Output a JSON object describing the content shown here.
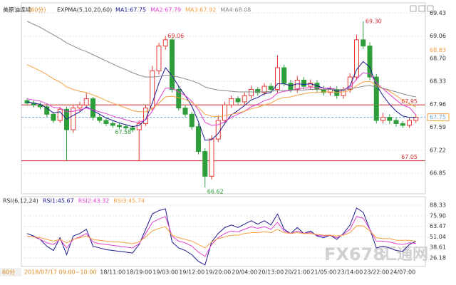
{
  "chart_data": [
    {
      "type": "candlestick",
      "title": "美原油连续",
      "period": "(60分)",
      "indicator": "EXPMA(5,10,20,60)",
      "categories": [
        null,
        null,
        null,
        null,
        null,
        null,
        null,
        null,
        null,
        null,
        null,
        null,
        null,
        "18/11:00",
        null,
        null,
        null,
        "18/19:00",
        null,
        null,
        null,
        "19/03:00",
        null,
        null,
        null,
        "19/12:00",
        null,
        null,
        null,
        "19/20:00",
        null,
        null,
        null,
        "20/04:00",
        null,
        null,
        null,
        "20/13:00",
        null,
        null,
        null,
        "20/21:00",
        null,
        null,
        null,
        "21/05:00",
        null,
        null,
        null,
        "23/14:00",
        null,
        null,
        null,
        "23/22:00",
        null,
        null,
        null,
        "24/07:00",
        null,
        null
      ],
      "open": [
        68.02,
        67.98,
        67.95,
        67.92,
        67.8,
        67.7,
        67.88,
        67.55,
        67.9,
        67.95,
        68.05,
        67.75,
        67.7,
        67.65,
        67.62,
        67.6,
        67.58,
        67.55,
        67.65,
        67.9,
        68.5,
        68.9,
        69.0,
        68.2,
        67.9,
        67.8,
        67.6,
        67.2,
        66.8,
        67.4,
        67.7,
        67.95,
        68.05,
        68.0,
        68.1,
        68.2,
        68.15,
        68.25,
        68.2,
        68.55,
        68.3,
        68.2,
        68.35,
        68.25,
        68.3,
        68.2,
        68.15,
        68.2,
        68.1,
        68.2,
        68.4,
        69.0,
        68.9,
        68.4,
        67.7,
        67.75,
        67.7,
        67.65,
        67.62,
        67.7
      ],
      "high": [
        68.06,
        68.02,
        67.99,
        67.96,
        67.84,
        67.92,
        67.92,
        67.95,
        68.0,
        68.15,
        68.08,
        67.8,
        67.74,
        67.69,
        67.66,
        67.64,
        67.62,
        67.7,
        67.95,
        68.58,
        68.95,
        69.06,
        69.03,
        68.26,
        67.95,
        67.84,
        67.65,
        67.25,
        67.46,
        67.78,
        68.0,
        68.1,
        68.09,
        68.15,
        68.26,
        68.24,
        68.3,
        68.3,
        68.75,
        68.6,
        68.36,
        68.42,
        68.4,
        68.36,
        68.35,
        68.26,
        68.25,
        68.25,
        68.24,
        68.46,
        69.08,
        69.3,
        68.96,
        68.45,
        67.82,
        67.8,
        67.74,
        67.69,
        67.74,
        67.8
      ],
      "low": [
        67.94,
        67.91,
        67.88,
        67.76,
        67.66,
        67.66,
        67.05,
        67.5,
        67.85,
        67.9,
        67.7,
        67.66,
        67.61,
        67.58,
        67.56,
        67.54,
        67.51,
        67.05,
        67.61,
        67.85,
        68.44,
        68.84,
        68.15,
        67.86,
        67.75,
        67.55,
        67.15,
        66.62,
        66.75,
        67.35,
        67.65,
        67.9,
        67.96,
        67.95,
        68.05,
        68.1,
        68.1,
        68.15,
        68.15,
        68.25,
        68.15,
        68.15,
        68.2,
        68.2,
        68.15,
        68.1,
        68.1,
        68.05,
        68.05,
        68.15,
        68.35,
        68.85,
        68.35,
        67.65,
        67.65,
        67.64,
        67.6,
        67.58,
        67.58,
        67.66
      ],
      "close": [
        67.98,
        67.95,
        67.92,
        67.8,
        67.7,
        67.88,
        67.55,
        67.9,
        67.95,
        68.05,
        67.75,
        67.7,
        67.65,
        67.62,
        67.6,
        67.58,
        67.55,
        67.65,
        67.9,
        68.5,
        68.9,
        69.0,
        68.2,
        67.9,
        67.8,
        67.6,
        67.2,
        66.8,
        67.4,
        67.7,
        67.95,
        68.05,
        68.0,
        68.1,
        68.2,
        68.15,
        68.25,
        68.2,
        68.55,
        68.3,
        68.2,
        68.35,
        68.25,
        68.3,
        68.2,
        68.15,
        68.2,
        68.1,
        68.2,
        68.4,
        69.0,
        68.9,
        68.4,
        67.7,
        67.75,
        67.7,
        67.65,
        67.62,
        67.7,
        67.75
      ],
      "up_color": "#e53935",
      "down_color": "#2e9e3a",
      "series": [
        {
          "name": "MA1:67.75",
          "color": "#1a1a8c",
          "values": [
            68.0,
            67.98,
            67.96,
            67.9,
            67.82,
            67.84,
            67.72,
            67.78,
            67.84,
            67.92,
            67.86,
            67.8,
            67.74,
            67.7,
            67.66,
            67.63,
            67.6,
            67.62,
            67.72,
            67.98,
            68.3,
            68.55,
            68.42,
            68.25,
            68.1,
            67.93,
            67.68,
            67.38,
            67.39,
            67.49,
            67.65,
            67.79,
            67.86,
            67.94,
            68.03,
            68.07,
            68.13,
            68.15,
            68.29,
            68.29,
            68.26,
            68.29,
            68.28,
            68.29,
            68.26,
            68.22,
            68.21,
            68.17,
            68.18,
            68.26,
            68.52,
            68.65,
            68.56,
            68.27,
            68.1,
            67.96,
            67.85,
            67.77,
            67.75,
            67.75
          ]
        },
        {
          "name": "MA2:67.79",
          "color": "#e040d0",
          "values": [
            68.05,
            68.03,
            68.01,
            67.97,
            67.91,
            67.9,
            67.84,
            67.85,
            67.87,
            67.9,
            67.87,
            67.84,
            67.81,
            67.77,
            67.74,
            67.71,
            67.68,
            67.67,
            67.71,
            67.85,
            68.04,
            68.22,
            68.22,
            68.16,
            68.1,
            68.01,
            67.87,
            67.67,
            67.62,
            67.63,
            67.68,
            67.75,
            67.8,
            67.85,
            67.92,
            67.96,
            68.02,
            68.05,
            68.14,
            68.17,
            68.18,
            68.21,
            68.22,
            68.23,
            68.23,
            68.22,
            68.22,
            68.2,
            68.2,
            68.23,
            68.37,
            68.47,
            68.45,
            68.31,
            68.21,
            68.12,
            68.03,
            67.95,
            67.91,
            67.79
          ]
        },
        {
          "name": "MA3:67.92",
          "color": "#f5a040",
          "values": [
            68.6,
            68.55,
            68.5,
            68.44,
            68.37,
            68.32,
            68.24,
            68.2,
            68.17,
            68.15,
            68.11,
            68.07,
            68.02,
            67.98,
            67.94,
            67.9,
            67.86,
            67.84,
            67.84,
            67.89,
            67.98,
            68.08,
            68.09,
            68.07,
            68.04,
            67.99,
            67.91,
            67.8,
            67.77,
            67.76,
            67.78,
            67.8,
            67.82,
            67.85,
            67.89,
            67.91,
            67.95,
            67.98,
            68.04,
            68.07,
            68.08,
            68.11,
            68.13,
            68.15,
            68.15,
            68.16,
            68.16,
            68.15,
            68.16,
            68.18,
            68.26,
            68.32,
            68.33,
            68.27,
            68.22,
            68.17,
            68.1,
            68.03,
            67.97,
            67.92
          ]
        },
        {
          "name": "MA4:68.08",
          "color": "#8a8a8a",
          "values": [
            69.3,
            69.25,
            69.2,
            69.14,
            69.08,
            69.02,
            68.95,
            68.9,
            68.85,
            68.81,
            68.76,
            68.71,
            68.66,
            68.61,
            68.56,
            68.52,
            68.47,
            68.43,
            68.4,
            68.4,
            68.41,
            68.43,
            68.42,
            68.4,
            68.37,
            68.34,
            68.3,
            68.24,
            68.21,
            68.19,
            68.18,
            68.17,
            68.16,
            68.16,
            68.16,
            68.16,
            68.16,
            68.17,
            68.18,
            68.18,
            68.19,
            68.19,
            68.19,
            68.2,
            68.2,
            68.2,
            68.2,
            68.2,
            68.2,
            68.21,
            68.23,
            68.25,
            68.26,
            68.24,
            68.22,
            68.19,
            68.16,
            68.13,
            68.1,
            68.08
          ]
        }
      ],
      "price_labels": [
        69.06,
        {
          "value": 69.3,
          "label": "69.30"
        },
        66.62,
        67.58
      ],
      "hlines": [
        {
          "value": 67.95,
          "color": "#d32f2f"
        },
        {
          "value": 67.05,
          "color": "#d32f2f"
        }
      ],
      "last_price": 67.75,
      "last_price_color": "#6fa8dc",
      "right_tags": [
        {
          "value": 68.83,
          "color": "#f5a040"
        }
      ],
      "ylim": [
        66.54,
        69.55
      ],
      "yticks": [
        66.85,
        67.22,
        67.59,
        67.96,
        68.33,
        {
          "value": 68.7,
          "label": "68.70"
        },
        69.06,
        69.43
      ],
      "grid": true
    },
    {
      "type": "line",
      "indicator": "RSI(6,12,24)",
      "series": [
        {
          "name": "RSI1:45.67",
          "color": "#1a1a8c",
          "values": [
            55,
            52,
            48,
            40,
            35,
            50,
            30,
            52,
            55,
            60,
            40,
            38,
            36,
            35,
            34,
            33,
            32,
            42,
            60,
            78,
            82,
            84,
            45,
            38,
            35,
            30,
            22,
            18,
            45,
            55,
            62,
            65,
            62,
            66,
            70,
            66,
            70,
            65,
            78,
            60,
            55,
            62,
            55,
            58,
            52,
            50,
            53,
            48,
            55,
            65,
            85,
            80,
            60,
            38,
            40,
            38,
            35,
            34,
            42,
            45.67
          ]
        },
        {
          "name": "RSI2:43.32",
          "color": "#e040d0",
          "values": [
            52,
            51,
            48,
            44,
            42,
            48,
            38,
            48,
            51,
            55,
            45,
            43,
            42,
            41,
            40,
            39,
            38,
            43,
            55,
            68,
            72,
            75,
            52,
            46,
            44,
            40,
            33,
            28,
            42,
            50,
            55,
            58,
            57,
            60,
            63,
            61,
            63,
            60,
            68,
            58,
            55,
            58,
            55,
            56,
            53,
            52,
            53,
            50,
            54,
            60,
            75,
            73,
            60,
            46,
            46,
            45,
            43,
            42,
            44,
            43.32
          ]
        },
        {
          "name": "RSI3:45.74",
          "color": "#f5a040",
          "values": [
            52,
            51,
            50,
            48,
            46,
            48,
            44,
            48,
            50,
            52,
            48,
            47,
            46,
            45,
            45,
            44,
            43,
            45,
            51,
            58,
            61,
            63,
            53,
            50,
            48,
            46,
            42,
            38,
            45,
            49,
            51,
            53,
            53,
            55,
            56,
            56,
            57,
            56,
            60,
            56,
            55,
            56,
            55,
            55,
            54,
            53,
            53,
            52,
            53,
            56,
            64,
            64,
            58,
            50,
            49,
            49,
            47,
            47,
            47,
            45.74
          ]
        }
      ],
      "ylim": [
        17.8,
        98.4
      ],
      "yticks": [
        26.18,
        38.61,
        51.04,
        63.47,
        {
          "value": 75.9,
          "label": "75.90"
        },
        88.33
      ],
      "grid": true
    }
  ],
  "footer": {
    "period_tab": "60分",
    "status": "2018/07/17 09:00~10:00"
  },
  "watermark": {
    "brand": "FX678",
    "name": "汇通网"
  }
}
